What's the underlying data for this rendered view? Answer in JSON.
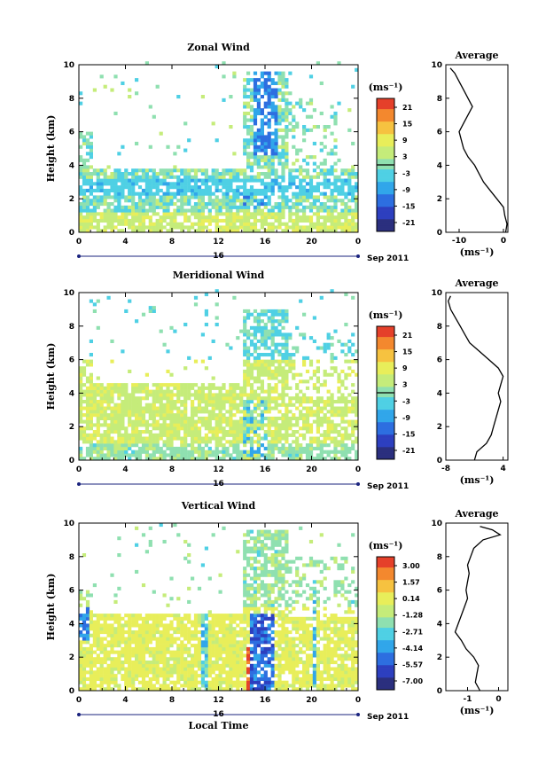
{
  "figure": {
    "time_unit_label": "Local Time",
    "date_label": "Sep 2011",
    "day_label": "16",
    "ylabel": "Height (km)",
    "profile_title": "Average",
    "profile_xlabel": "(ms⁻¹)",
    "colorbar_unit": "(ms⁻¹)"
  },
  "chart_data": [
    {
      "type": "heatmap",
      "title": "Zonal Wind",
      "xlabel": "",
      "ylabel": "Height (km)",
      "x_ticks": [
        "0",
        "4",
        "8",
        "12",
        "16",
        "20",
        "0"
      ],
      "x_range_hours": [
        0,
        24
      ],
      "y_range_km": [
        0,
        10
      ],
      "y_ticks": [
        "0",
        "2",
        "4",
        "6",
        "8",
        "10"
      ],
      "colorbar": {
        "unit": "(ms⁻¹)",
        "ticks": [
          "21",
          "15",
          "9",
          "3",
          "-3",
          "-9",
          "-15",
          "-21"
        ],
        "range": [
          -24,
          24
        ]
      },
      "profile": {
        "title": "Average",
        "x_ticks": [
          "-10",
          "0"
        ],
        "x_range": [
          -13,
          1
        ],
        "points": [
          [
            0.5,
            0
          ],
          [
            0.8,
            0.5
          ],
          [
            0.3,
            1
          ],
          [
            0,
            1.5
          ],
          [
            -1.5,
            2
          ],
          [
            -3,
            2.5
          ],
          [
            -4.5,
            3
          ],
          [
            -5.5,
            3.5
          ],
          [
            -6.5,
            4
          ],
          [
            -8,
            4.5
          ],
          [
            -9,
            5
          ],
          [
            -9.5,
            5.5
          ],
          [
            -10,
            6
          ],
          [
            -9,
            6.5
          ],
          [
            -8,
            7
          ],
          [
            -7,
            7.5
          ],
          [
            -8,
            8
          ],
          [
            -9,
            8.5
          ],
          [
            -10,
            9
          ],
          [
            -11,
            9.5
          ],
          [
            -12,
            9.8
          ]
        ]
      }
    },
    {
      "type": "heatmap",
      "title": "Meridional Wind",
      "xlabel": "",
      "ylabel": "Height (km)",
      "x_ticks": [
        "0",
        "4",
        "8",
        "12",
        "16",
        "20",
        "0"
      ],
      "x_range_hours": [
        0,
        24
      ],
      "y_range_km": [
        0,
        10
      ],
      "y_ticks": [
        "0",
        "2",
        "4",
        "6",
        "8",
        "10"
      ],
      "colorbar": {
        "unit": "(ms⁻¹)",
        "ticks": [
          "21",
          "15",
          "9",
          "3",
          "-3",
          "-9",
          "-15",
          "-21"
        ],
        "range": [
          -24,
          24
        ]
      },
      "profile": {
        "title": "Average",
        "x_ticks": [
          "-8",
          "4"
        ],
        "x_range": [
          -8,
          5
        ],
        "points": [
          [
            -2,
            0
          ],
          [
            -1.5,
            0.5
          ],
          [
            0.5,
            1
          ],
          [
            1.5,
            1.5
          ],
          [
            2,
            2
          ],
          [
            2.5,
            2.5
          ],
          [
            3,
            3
          ],
          [
            3.5,
            3.5
          ],
          [
            3,
            4
          ],
          [
            3.5,
            4.5
          ],
          [
            4,
            5
          ],
          [
            3,
            5.5
          ],
          [
            1,
            6
          ],
          [
            -1,
            6.5
          ],
          [
            -3,
            7
          ],
          [
            -4,
            7.5
          ],
          [
            -5,
            8
          ],
          [
            -6,
            8.5
          ],
          [
            -7,
            9
          ],
          [
            -7.5,
            9.5
          ],
          [
            -7,
            9.8
          ]
        ]
      }
    },
    {
      "type": "heatmap",
      "title": "Vertical Wind",
      "xlabel": "Local Time",
      "ylabel": "Height (km)",
      "x_ticks": [
        "0",
        "4",
        "8",
        "12",
        "16",
        "20",
        "0"
      ],
      "x_range_hours": [
        0,
        24
      ],
      "y_range_km": [
        0,
        10
      ],
      "y_ticks": [
        "0",
        "2",
        "4",
        "6",
        "8",
        "10"
      ],
      "colorbar": {
        "unit": "(ms⁻¹)",
        "ticks": [
          "3.00",
          "1.57",
          "0.14",
          "-1.28",
          "-2.71",
          "-4.14",
          "-5.57",
          "-7.00"
        ],
        "range": [
          -8,
          4
        ]
      },
      "profile": {
        "title": "Average",
        "x_ticks": [
          "-1",
          "0"
        ],
        "x_range": [
          -1.7,
          0.3
        ],
        "points": [
          [
            -0.6,
            0
          ],
          [
            -0.75,
            0.5
          ],
          [
            -0.7,
            1
          ],
          [
            -0.65,
            1.5
          ],
          [
            -0.8,
            2
          ],
          [
            -1.05,
            2.5
          ],
          [
            -1.2,
            3
          ],
          [
            -1.4,
            3.5
          ],
          [
            -1.3,
            4
          ],
          [
            -1.2,
            4.5
          ],
          [
            -1.1,
            5
          ],
          [
            -1.0,
            5.5
          ],
          [
            -1.05,
            6
          ],
          [
            -1.0,
            6.5
          ],
          [
            -0.95,
            7
          ],
          [
            -1.0,
            7.5
          ],
          [
            -0.9,
            8
          ],
          [
            -0.8,
            8.5
          ],
          [
            -0.5,
            9
          ],
          [
            0.05,
            9.3
          ],
          [
            -0.2,
            9.6
          ],
          [
            -0.6,
            9.8
          ]
        ]
      }
    }
  ]
}
